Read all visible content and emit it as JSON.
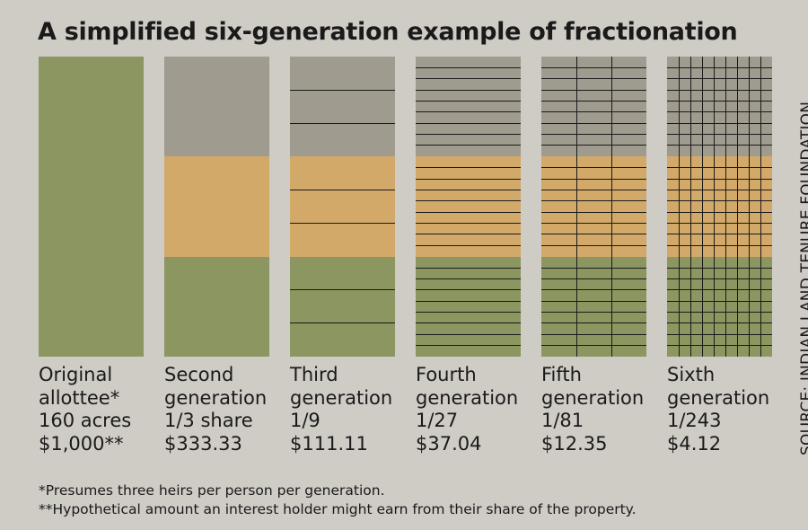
{
  "title": "A simplified six-generation example of fractionation",
  "colors": {
    "background": "#cfcbc5",
    "share_top": "#a09b8f",
    "share_middle": "#d3a96a",
    "share_bottom": "#8b9660",
    "grid_line": "#1a1a1a"
  },
  "generations": [
    {
      "line1": "Original",
      "line2": "allottee*",
      "share": "160 acres",
      "value": "$1,000**",
      "rows_per_band": 1,
      "cols": 1
    },
    {
      "line1": "Second",
      "line2": "generation",
      "share": "1/3 share",
      "value": "$333.33",
      "rows_per_band": 1,
      "cols": 1
    },
    {
      "line1": "Third",
      "line2": "generation",
      "share": "1/9",
      "value": "$111.11",
      "rows_per_band": 3,
      "cols": 1
    },
    {
      "line1": "Fourth",
      "line2": "generation",
      "share": "1/27",
      "value": "$37.04",
      "rows_per_band": 9,
      "cols": 1
    },
    {
      "line1": "Fifth",
      "line2": "generation",
      "share": "1/81",
      "value": "$12.35",
      "rows_per_band": 9,
      "cols": 3
    },
    {
      "line1": "Sixth",
      "line2": "generation",
      "share": "1/243",
      "value": "$4.12",
      "rows_per_band": 9,
      "cols": 9
    }
  ],
  "source": "SOURCE: INDIAN LAND TENURE FOUNDATION",
  "footnotes": [
    "*Presumes three heirs per person per generation.",
    "**Hypothetical amount an interest holder might earn from their share of the property."
  ]
}
